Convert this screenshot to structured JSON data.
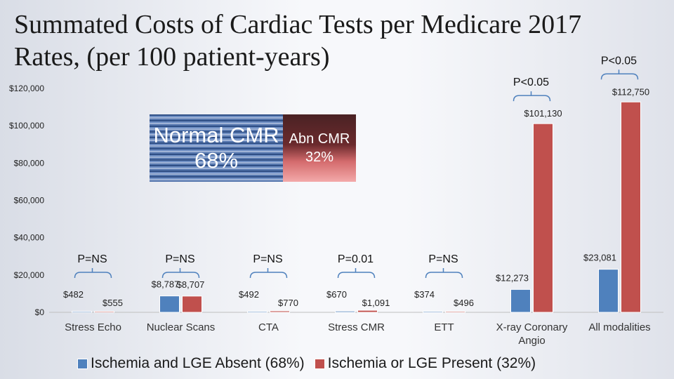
{
  "title": "Summated Costs of Cardiac Tests per Medicare 2017\nRates, (per 100 patient-years)",
  "chart_data": {
    "type": "bar",
    "title": "Summated Costs of Cardiac Tests per Medicare 2017 Rates, (per 100 patient-years)",
    "categories": [
      "Stress Echo",
      "Nuclear Scans",
      "CTA",
      "Stress CMR",
      "ETT",
      "X-ray Coronary Angio",
      "All modalities"
    ],
    "series": [
      {
        "name": "Ischemia and LGE Absent (68%)",
        "color": "#4f81bd",
        "values": [
          482,
          8787,
          492,
          670,
          374,
          12273,
          23081
        ]
      },
      {
        "name": "Ischemia or LGE Present (32%)",
        "color": "#c0504d",
        "values": [
          555,
          8707,
          770,
          1091,
          496,
          101130,
          112750
        ]
      }
    ],
    "data_labels": [
      [
        "$482",
        "$8,787",
        "$492",
        "$670",
        "$374",
        "$12,273",
        "$23,081"
      ],
      [
        "$555",
        "$8,707",
        "$770",
        "$1,091",
        "$496",
        "$101,130",
        "$112,750"
      ]
    ],
    "p_values": [
      "P=NS",
      "P=NS",
      "P=NS",
      "P=0.01",
      "P=NS",
      "P<0.05",
      "P<0.05"
    ],
    "y_ticks": [
      "$0",
      "$20,000",
      "$40,000",
      "$60,000",
      "$80,000",
      "$100,000",
      "$120,000"
    ],
    "ylim": [
      0,
      120000
    ],
    "grid": false,
    "legend_position": "bottom"
  },
  "inset": {
    "normal_label": "Normal CMR 68%",
    "abnormal_label": "Abn CMR 32%"
  }
}
